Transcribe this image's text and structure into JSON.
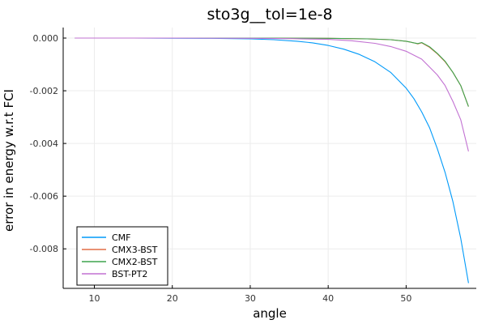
{
  "chart_data": {
    "type": "line",
    "title": "sto3g__tol=1e-8",
    "xlabel": "angle",
    "ylabel": "error in energy w.r.t FCI",
    "xlim": [
      6,
      59
    ],
    "ylim": [
      -0.0095,
      0.0004
    ],
    "xticks": [
      10,
      20,
      30,
      40,
      50
    ],
    "xtick_labels": [
      "10",
      "20",
      "30",
      "40",
      "50"
    ],
    "yticks": [
      0,
      -0.002,
      -0.004,
      -0.006,
      -0.008
    ],
    "ytick_labels": [
      "0.000",
      "-0.002",
      "-0.004",
      "-0.006",
      "-0.008"
    ],
    "grid": true,
    "legend_position": "bottom-left",
    "series": [
      {
        "name": "CMF",
        "color": "#009af9",
        "x": [
          7.5,
          10,
          15,
          20,
          25,
          30,
          33,
          36,
          38,
          40,
          42,
          44,
          46,
          48,
          50,
          51,
          52,
          53,
          54,
          55,
          56,
          57,
          58
        ],
        "y": [
          0,
          0,
          0,
          -5e-06,
          -1e-05,
          -3e-05,
          -6e-05,
          -0.00012,
          -0.00018,
          -0.00028,
          -0.00042,
          -0.00062,
          -0.0009,
          -0.0013,
          -0.0019,
          -0.0023,
          -0.0028,
          -0.0034,
          -0.0042,
          -0.0051,
          -0.0062,
          -0.0076,
          -0.0093
        ]
      },
      {
        "name": "CMX3-BST",
        "color": "#e26f46",
        "x": [
          7.5,
          20,
          30,
          40,
          45,
          48,
          50,
          51,
          51.5,
          52,
          53,
          54,
          55,
          56,
          57,
          58
        ],
        "y": [
          0,
          0,
          0,
          -1e-05,
          -3e-05,
          -6e-05,
          -0.00012,
          -0.00018,
          -0.00022,
          -0.00018,
          -0.00035,
          -0.0006,
          -0.0009,
          -0.0013,
          -0.0018,
          -0.0026
        ]
      },
      {
        "name": "CMX2-BST",
        "color": "#3da44d",
        "x": [
          7.5,
          20,
          30,
          40,
          45,
          48,
          50,
          51,
          51.5,
          52,
          53,
          54,
          55,
          56,
          57,
          58
        ],
        "y": [
          0,
          0,
          0,
          -1e-05,
          -3e-05,
          -6e-05,
          -0.00012,
          -0.00018,
          -0.00021,
          -0.00017,
          -0.00033,
          -0.00058,
          -0.00088,
          -0.0013,
          -0.0018,
          -0.0026
        ]
      },
      {
        "name": "BST-PT2",
        "color": "#c271d2",
        "x": [
          7.5,
          20,
          30,
          35,
          40,
          43,
          46,
          48,
          50,
          52,
          53,
          54,
          55,
          56,
          57,
          58
        ],
        "y": [
          0,
          0,
          -1e-05,
          -2e-05,
          -5e-05,
          -0.0001,
          -0.0002,
          -0.00032,
          -0.0005,
          -0.0008,
          -0.0011,
          -0.0014,
          -0.0018,
          -0.0024,
          -0.0031,
          -0.0043
        ]
      }
    ]
  }
}
